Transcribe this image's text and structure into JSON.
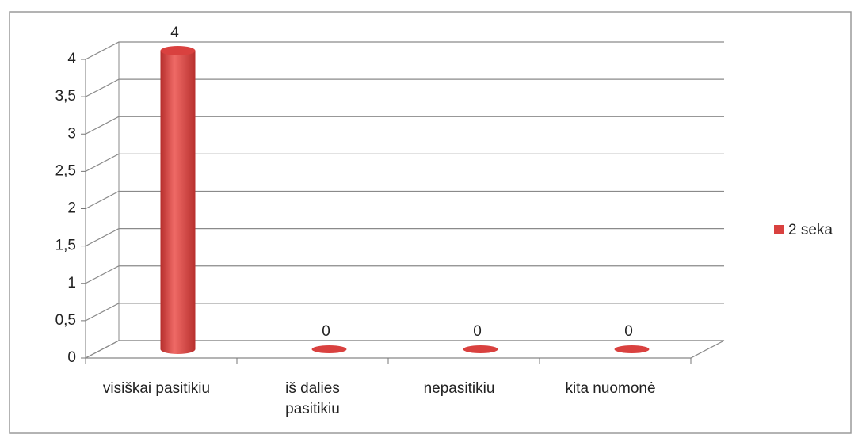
{
  "chart_data": {
    "type": "bar",
    "categories": [
      "visiškai pasitikiu",
      "iš dalies pasitikiu",
      "nepasitikiu",
      "kita nuomonė"
    ],
    "series": [
      {
        "name": "2 seka",
        "color": "#d9413f",
        "values": [
          4,
          0,
          0,
          0
        ]
      }
    ],
    "ylim": [
      0,
      4
    ],
    "yticks": [
      0,
      {
        "value": 0.5,
        "label": "0,5"
      },
      1,
      {
        "value": 1.5,
        "label": "1,5"
      },
      2,
      {
        "value": 2.5,
        "label": "2,5"
      },
      3,
      {
        "value": 3.5,
        "label": "3,5"
      },
      4
    ],
    "grid": true,
    "legend": "right"
  }
}
